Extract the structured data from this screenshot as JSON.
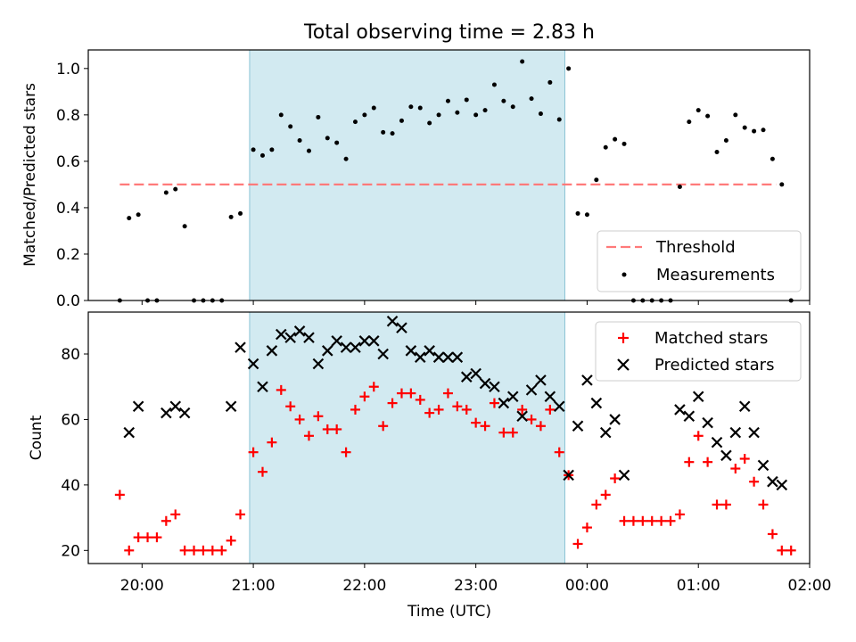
{
  "figure": {
    "title": "Total observing time = 2.83 h",
    "xlabel": "Time (UTC)",
    "x_ticks": [
      "20:00",
      "21:00",
      "22:00",
      "23:00",
      "00:00",
      "01:00",
      "02:00"
    ]
  },
  "chart_data": [
    {
      "type": "scatter",
      "ylabel": "Matched/Predicted stars",
      "xlim": [
        "19:31",
        "02:00"
      ],
      "ylim": [
        0,
        1.08
      ],
      "y_ticks": [
        "0.0",
        "0.2",
        "0.4",
        "0.6",
        "0.8",
        "1.0"
      ],
      "shaded_interval": [
        "20:58",
        "23:48"
      ],
      "threshold": {
        "value": 0.5,
        "x_range": [
          "19:48",
          "01:42"
        ]
      },
      "legend": {
        "position": "lower-right",
        "threshold_label": "Threshold",
        "measurements_label": "Measurements"
      },
      "colors": {
        "threshold": "#ff7a7a",
        "measurements": "#000000",
        "shade": "#add8e6"
      },
      "measurements": [
        {
          "x": "19:48",
          "y": 0.0
        },
        {
          "x": "19:53",
          "y": 0.355
        },
        {
          "x": "19:58",
          "y": 0.37
        },
        {
          "x": "20:03",
          "y": 0.0
        },
        {
          "x": "20:08",
          "y": 0.0
        },
        {
          "x": "20:13",
          "y": 0.465
        },
        {
          "x": "20:18",
          "y": 0.48
        },
        {
          "x": "20:23",
          "y": 0.32
        },
        {
          "x": "20:28",
          "y": 0.0
        },
        {
          "x": "20:33",
          "y": 0.0
        },
        {
          "x": "20:38",
          "y": 0.0
        },
        {
          "x": "20:43",
          "y": 0.0
        },
        {
          "x": "20:48",
          "y": 0.36
        },
        {
          "x": "20:53",
          "y": 0.375
        },
        {
          "x": "21:00",
          "y": 0.65
        },
        {
          "x": "21:05",
          "y": 0.625
        },
        {
          "x": "21:10",
          "y": 0.65
        },
        {
          "x": "21:15",
          "y": 0.8
        },
        {
          "x": "21:20",
          "y": 0.75
        },
        {
          "x": "21:25",
          "y": 0.69
        },
        {
          "x": "21:30",
          "y": 0.645
        },
        {
          "x": "21:35",
          "y": 0.79
        },
        {
          "x": "21:40",
          "y": 0.7
        },
        {
          "x": "21:45",
          "y": 0.68
        },
        {
          "x": "21:50",
          "y": 0.61
        },
        {
          "x": "21:55",
          "y": 0.77
        },
        {
          "x": "22:00",
          "y": 0.8
        },
        {
          "x": "22:05",
          "y": 0.83
        },
        {
          "x": "22:10",
          "y": 0.725
        },
        {
          "x": "22:15",
          "y": 0.72
        },
        {
          "x": "22:20",
          "y": 0.775
        },
        {
          "x": "22:25",
          "y": 0.835
        },
        {
          "x": "22:30",
          "y": 0.83
        },
        {
          "x": "22:35",
          "y": 0.765
        },
        {
          "x": "22:40",
          "y": 0.8
        },
        {
          "x": "22:45",
          "y": 0.86
        },
        {
          "x": "22:50",
          "y": 0.81
        },
        {
          "x": "22:55",
          "y": 0.865
        },
        {
          "x": "23:00",
          "y": 0.8
        },
        {
          "x": "23:05",
          "y": 0.82
        },
        {
          "x": "23:10",
          "y": 0.93
        },
        {
          "x": "23:15",
          "y": 0.86
        },
        {
          "x": "23:20",
          "y": 0.835
        },
        {
          "x": "23:25",
          "y": 1.03
        },
        {
          "x": "23:30",
          "y": 0.87
        },
        {
          "x": "23:35",
          "y": 0.805
        },
        {
          "x": "23:40",
          "y": 0.94
        },
        {
          "x": "23:45",
          "y": 0.78
        },
        {
          "x": "23:50",
          "y": 1.0
        },
        {
          "x": "23:55",
          "y": 0.375
        },
        {
          "x": "00:00",
          "y": 0.37
        },
        {
          "x": "00:05",
          "y": 0.52
        },
        {
          "x": "00:10",
          "y": 0.66
        },
        {
          "x": "00:15",
          "y": 0.695
        },
        {
          "x": "00:20",
          "y": 0.675
        },
        {
          "x": "00:25",
          "y": 0.0
        },
        {
          "x": "00:30",
          "y": 0.0
        },
        {
          "x": "00:35",
          "y": 0.0
        },
        {
          "x": "00:40",
          "y": 0.0
        },
        {
          "x": "00:45",
          "y": 0.0
        },
        {
          "x": "00:50",
          "y": 0.49
        },
        {
          "x": "00:55",
          "y": 0.77
        },
        {
          "x": "01:00",
          "y": 0.82
        },
        {
          "x": "01:05",
          "y": 0.795
        },
        {
          "x": "01:10",
          "y": 0.64
        },
        {
          "x": "01:15",
          "y": 0.69
        },
        {
          "x": "01:20",
          "y": 0.8
        },
        {
          "x": "01:25",
          "y": 0.745
        },
        {
          "x": "01:30",
          "y": 0.73
        },
        {
          "x": "01:35",
          "y": 0.735
        },
        {
          "x": "01:40",
          "y": 0.61
        },
        {
          "x": "01:45",
          "y": 0.5
        },
        {
          "x": "01:50",
          "y": 0.0
        }
      ]
    },
    {
      "type": "scatter",
      "ylabel": "Count",
      "xlim": [
        "19:31",
        "02:00"
      ],
      "ylim": [
        16,
        92.8
      ],
      "y_ticks": [
        "20",
        "40",
        "60",
        "80"
      ],
      "shaded_interval": [
        "20:58",
        "23:48"
      ],
      "legend": {
        "position": "upper-right",
        "matched_label": "Matched stars",
        "predicted_label": "Predicted stars"
      },
      "colors": {
        "matched": "#ff0000",
        "predicted": "#000000",
        "shade": "#add8e6"
      },
      "series": [
        {
          "name": "Matched stars",
          "points": [
            {
              "x": "19:48",
              "y": 37
            },
            {
              "x": "19:53",
              "y": 20
            },
            {
              "x": "19:58",
              "y": 24
            },
            {
              "x": "20:03",
              "y": 24
            },
            {
              "x": "20:08",
              "y": 24
            },
            {
              "x": "20:13",
              "y": 29
            },
            {
              "x": "20:18",
              "y": 31
            },
            {
              "x": "20:23",
              "y": 20
            },
            {
              "x": "20:28",
              "y": 20
            },
            {
              "x": "20:33",
              "y": 20
            },
            {
              "x": "20:38",
              "y": 20
            },
            {
              "x": "20:43",
              "y": 20
            },
            {
              "x": "20:48",
              "y": 23
            },
            {
              "x": "20:53",
              "y": 31
            },
            {
              "x": "21:00",
              "y": 50
            },
            {
              "x": "21:05",
              "y": 44
            },
            {
              "x": "21:10",
              "y": 53
            },
            {
              "x": "21:15",
              "y": 69
            },
            {
              "x": "21:20",
              "y": 64
            },
            {
              "x": "21:25",
              "y": 60
            },
            {
              "x": "21:30",
              "y": 55
            },
            {
              "x": "21:35",
              "y": 61
            },
            {
              "x": "21:40",
              "y": 57
            },
            {
              "x": "21:45",
              "y": 57
            },
            {
              "x": "21:50",
              "y": 50
            },
            {
              "x": "21:55",
              "y": 63
            },
            {
              "x": "22:00",
              "y": 67
            },
            {
              "x": "22:05",
              "y": 70
            },
            {
              "x": "22:10",
              "y": 58
            },
            {
              "x": "22:15",
              "y": 65
            },
            {
              "x": "22:20",
              "y": 68
            },
            {
              "x": "22:25",
              "y": 68
            },
            {
              "x": "22:30",
              "y": 66
            },
            {
              "x": "22:35",
              "y": 62
            },
            {
              "x": "22:40",
              "y": 63
            },
            {
              "x": "22:45",
              "y": 68
            },
            {
              "x": "22:50",
              "y": 64
            },
            {
              "x": "22:55",
              "y": 63
            },
            {
              "x": "23:00",
              "y": 59
            },
            {
              "x": "23:05",
              "y": 58
            },
            {
              "x": "23:10",
              "y": 65
            },
            {
              "x": "23:15",
              "y": 56
            },
            {
              "x": "23:20",
              "y": 56
            },
            {
              "x": "23:25",
              "y": 63
            },
            {
              "x": "23:30",
              "y": 60
            },
            {
              "x": "23:35",
              "y": 58
            },
            {
              "x": "23:40",
              "y": 63
            },
            {
              "x": "23:45",
              "y": 50
            },
            {
              "x": "23:50",
              "y": 43
            },
            {
              "x": "23:55",
              "y": 22
            },
            {
              "x": "00:00",
              "y": 27
            },
            {
              "x": "00:05",
              "y": 34
            },
            {
              "x": "00:10",
              "y": 37
            },
            {
              "x": "00:15",
              "y": 42
            },
            {
              "x": "00:20",
              "y": 29
            },
            {
              "x": "00:25",
              "y": 29
            },
            {
              "x": "00:30",
              "y": 29
            },
            {
              "x": "00:35",
              "y": 29
            },
            {
              "x": "00:40",
              "y": 29
            },
            {
              "x": "00:45",
              "y": 29
            },
            {
              "x": "00:50",
              "y": 31
            },
            {
              "x": "00:55",
              "y": 47
            },
            {
              "x": "01:00",
              "y": 55
            },
            {
              "x": "01:05",
              "y": 47
            },
            {
              "x": "01:10",
              "y": 34
            },
            {
              "x": "01:15",
              "y": 34
            },
            {
              "x": "01:20",
              "y": 45
            },
            {
              "x": "01:25",
              "y": 48
            },
            {
              "x": "01:30",
              "y": 41
            },
            {
              "x": "01:35",
              "y": 34
            },
            {
              "x": "01:40",
              "y": 25
            },
            {
              "x": "01:45",
              "y": 20
            },
            {
              "x": "01:50",
              "y": 20
            }
          ]
        },
        {
          "name": "Predicted stars",
          "points": [
            {
              "x": "19:53",
              "y": 56
            },
            {
              "x": "19:58",
              "y": 64
            },
            {
              "x": "20:13",
              "y": 62
            },
            {
              "x": "20:18",
              "y": 64
            },
            {
              "x": "20:23",
              "y": 62
            },
            {
              "x": "20:48",
              "y": 64
            },
            {
              "x": "20:53",
              "y": 82
            },
            {
              "x": "21:00",
              "y": 77
            },
            {
              "x": "21:05",
              "y": 70
            },
            {
              "x": "21:10",
              "y": 81
            },
            {
              "x": "21:15",
              "y": 86
            },
            {
              "x": "21:20",
              "y": 85
            },
            {
              "x": "21:25",
              "y": 87
            },
            {
              "x": "21:30",
              "y": 85
            },
            {
              "x": "21:35",
              "y": 77
            },
            {
              "x": "21:40",
              "y": 81
            },
            {
              "x": "21:45",
              "y": 84
            },
            {
              "x": "21:50",
              "y": 82
            },
            {
              "x": "21:55",
              "y": 82
            },
            {
              "x": "22:00",
              "y": 84
            },
            {
              "x": "22:05",
              "y": 84
            },
            {
              "x": "22:10",
              "y": 80
            },
            {
              "x": "22:15",
              "y": 90
            },
            {
              "x": "22:20",
              "y": 88
            },
            {
              "x": "22:25",
              "y": 81
            },
            {
              "x": "22:30",
              "y": 79
            },
            {
              "x": "22:35",
              "y": 81
            },
            {
              "x": "22:40",
              "y": 79
            },
            {
              "x": "22:45",
              "y": 79
            },
            {
              "x": "22:50",
              "y": 79
            },
            {
              "x": "22:55",
              "y": 73
            },
            {
              "x": "23:00",
              "y": 74
            },
            {
              "x": "23:05",
              "y": 71
            },
            {
              "x": "23:10",
              "y": 70
            },
            {
              "x": "23:15",
              "y": 65
            },
            {
              "x": "23:20",
              "y": 67
            },
            {
              "x": "23:25",
              "y": 61
            },
            {
              "x": "23:30",
              "y": 69
            },
            {
              "x": "23:35",
              "y": 72
            },
            {
              "x": "23:40",
              "y": 67
            },
            {
              "x": "23:45",
              "y": 64
            },
            {
              "x": "23:50",
              "y": 43
            },
            {
              "x": "23:55",
              "y": 58
            },
            {
              "x": "00:00",
              "y": 72
            },
            {
              "x": "00:05",
              "y": 65
            },
            {
              "x": "00:10",
              "y": 56
            },
            {
              "x": "00:15",
              "y": 60
            },
            {
              "x": "00:20",
              "y": 43
            },
            {
              "x": "00:50",
              "y": 63
            },
            {
              "x": "00:55",
              "y": 61
            },
            {
              "x": "01:00",
              "y": 67
            },
            {
              "x": "01:05",
              "y": 59
            },
            {
              "x": "01:10",
              "y": 53
            },
            {
              "x": "01:15",
              "y": 49
            },
            {
              "x": "01:20",
              "y": 56
            },
            {
              "x": "01:25",
              "y": 64
            },
            {
              "x": "01:30",
              "y": 56
            },
            {
              "x": "01:35",
              "y": 46
            },
            {
              "x": "01:40",
              "y": 41
            },
            {
              "x": "01:45",
              "y": 40
            }
          ]
        }
      ]
    }
  ]
}
